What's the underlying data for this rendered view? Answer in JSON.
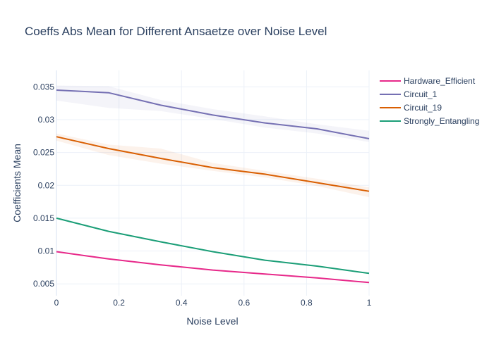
{
  "chart_data": {
    "type": "line",
    "title": "Coeffs Abs Mean for Different Ansaetze over Noise Level",
    "xlabel": "Noise Level",
    "ylabel": "Coefficients Mean",
    "xlim": [
      0,
      1
    ],
    "ylim": [
      0.0032,
      0.0375
    ],
    "x_ticks": [
      "0",
      "0.2",
      "0.4",
      "0.6",
      "0.8",
      "1"
    ],
    "y_ticks": [
      "0.005",
      "0.01",
      "0.015",
      "0.02",
      "0.025",
      "0.03",
      "0.035"
    ],
    "grid": true,
    "legend_position": "top-right",
    "x": [
      0,
      0.1667,
      0.3333,
      0.5,
      0.6667,
      0.8333,
      1
    ],
    "series": [
      {
        "name": "Hardware_Efficient",
        "color": "#e7298a",
        "values": [
          0.0099,
          0.0088,
          0.0079,
          0.0071,
          0.0065,
          0.0059,
          0.0052
        ],
        "lower": [
          0.0098,
          0.0087,
          0.0078,
          0.007,
          0.0064,
          0.0058,
          0.0051
        ],
        "upper": [
          0.01,
          0.0089,
          0.008,
          0.0072,
          0.0066,
          0.006,
          0.0053
        ]
      },
      {
        "name": "Circuit_1",
        "color": "#7570b3",
        "values": [
          0.0345,
          0.0341,
          0.0322,
          0.0307,
          0.0295,
          0.0286,
          0.0271
        ],
        "lower": [
          0.0329,
          0.0318,
          0.0313,
          0.0301,
          0.0288,
          0.0279,
          0.0266
        ],
        "upper": [
          0.0352,
          0.0351,
          0.033,
          0.0316,
          0.0305,
          0.0293,
          0.0283
        ]
      },
      {
        "name": "Circuit_19",
        "color": "#d95f02",
        "values": [
          0.0274,
          0.0256,
          0.0241,
          0.0227,
          0.0217,
          0.0204,
          0.0191
        ],
        "lower": [
          0.0268,
          0.0246,
          0.0233,
          0.0222,
          0.0212,
          0.0199,
          0.0182
        ],
        "upper": [
          0.0279,
          0.0262,
          0.0256,
          0.0234,
          0.0222,
          0.021,
          0.0197
        ]
      },
      {
        "name": "Strongly_Entangling",
        "color": "#1b9e77",
        "values": [
          0.015,
          0.013,
          0.0114,
          0.0099,
          0.0086,
          0.0077,
          0.0066
        ],
        "lower": [
          0.0149,
          0.0129,
          0.0113,
          0.0098,
          0.0085,
          0.0076,
          0.0065
        ],
        "upper": [
          0.0151,
          0.0131,
          0.0115,
          0.01,
          0.0087,
          0.0078,
          0.0067
        ]
      }
    ]
  }
}
